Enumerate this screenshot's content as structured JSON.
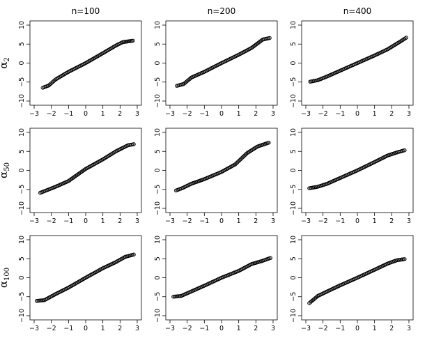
{
  "chart_data": {
    "type": "scatter",
    "layout": {
      "rows": 3,
      "cols": 3
    },
    "column_titles": [
      "n=100",
      "n=200",
      "n=400"
    ],
    "row_labels": [
      {
        "base": "α",
        "sub": "2"
      },
      {
        "base": "α",
        "sub": "50"
      },
      {
        "base": "α",
        "sub": "100"
      }
    ],
    "xlim": [
      -3,
      3
    ],
    "ylim": [
      -10,
      10
    ],
    "x_ticks": [
      -3,
      -2,
      -1,
      0,
      1,
      2,
      3
    ],
    "y_ticks": [
      -10,
      -5,
      0,
      5,
      10
    ],
    "x_tick_labels": [
      "−3",
      "−2",
      "−1",
      "0",
      "1",
      "2",
      "3"
    ],
    "y_tick_labels": [
      "−10",
      "−5",
      "0",
      "5",
      "10"
    ],
    "marker": "open-circle",
    "grid": false,
    "panels": [
      {
        "row": 0,
        "col": 0,
        "x": [
          -2.5,
          -2.15,
          -1.75,
          -1.0,
          0.0,
          1.0,
          1.75,
          2.15,
          2.75
        ],
        "y": [
          -6.5,
          -5.9,
          -4.3,
          -2.3,
          0.0,
          2.6,
          4.6,
          5.5,
          5.9
        ]
      },
      {
        "row": 0,
        "col": 1,
        "x": [
          -2.6,
          -2.2,
          -1.75,
          -1.0,
          0.0,
          1.0,
          1.75,
          2.4,
          2.8
        ],
        "y": [
          -6.0,
          -5.5,
          -3.8,
          -2.3,
          0.0,
          2.2,
          4.0,
          6.2,
          6.6
        ]
      },
      {
        "row": 0,
        "col": 2,
        "x": [
          -2.75,
          -2.3,
          -1.75,
          -1.0,
          0.0,
          1.0,
          1.75,
          2.4,
          2.85
        ],
        "y": [
          -4.9,
          -4.5,
          -3.5,
          -2.0,
          0.0,
          2.0,
          3.6,
          5.4,
          6.7
        ]
      },
      {
        "row": 1,
        "col": 0,
        "x": [
          -2.65,
          -2.25,
          -1.75,
          -1.0,
          0.0,
          1.0,
          1.75,
          2.45,
          2.8
        ],
        "y": [
          -5.9,
          -5.2,
          -4.3,
          -2.8,
          0.4,
          2.9,
          5.0,
          6.6,
          6.9
        ]
      },
      {
        "row": 1,
        "col": 1,
        "x": [
          -2.65,
          -2.25,
          -1.75,
          -1.0,
          0.0,
          0.8,
          1.5,
          2.1,
          2.75
        ],
        "y": [
          -5.3,
          -4.6,
          -3.5,
          -2.3,
          -0.4,
          1.6,
          4.6,
          6.3,
          7.3
        ]
      },
      {
        "row": 1,
        "col": 2,
        "x": [
          -2.8,
          -2.3,
          -1.75,
          -1.0,
          0.0,
          1.0,
          1.75,
          2.35,
          2.75
        ],
        "y": [
          -4.7,
          -4.3,
          -3.5,
          -2.0,
          0.0,
          2.2,
          3.9,
          4.8,
          5.3
        ]
      },
      {
        "row": 2,
        "col": 0,
        "x": [
          -2.85,
          -2.4,
          -1.75,
          -1.0,
          0.0,
          1.0,
          1.75,
          2.3,
          2.8
        ],
        "y": [
          -6.1,
          -5.9,
          -4.3,
          -2.6,
          0.0,
          2.5,
          4.1,
          5.5,
          6.1
        ]
      },
      {
        "row": 2,
        "col": 1,
        "x": [
          -2.8,
          -2.35,
          -1.75,
          -1.0,
          0.0,
          1.0,
          1.75,
          2.35,
          2.85
        ],
        "y": [
          -5.0,
          -4.8,
          -3.6,
          -2.1,
          0.0,
          1.8,
          3.6,
          4.4,
          5.2
        ]
      },
      {
        "row": 2,
        "col": 2,
        "x": [
          -2.8,
          -2.3,
          -1.75,
          -1.0,
          0.0,
          1.0,
          1.75,
          2.3,
          2.75
        ],
        "y": [
          -6.7,
          -4.8,
          -3.6,
          -2.0,
          0.0,
          2.1,
          3.7,
          4.6,
          4.9
        ]
      }
    ]
  }
}
